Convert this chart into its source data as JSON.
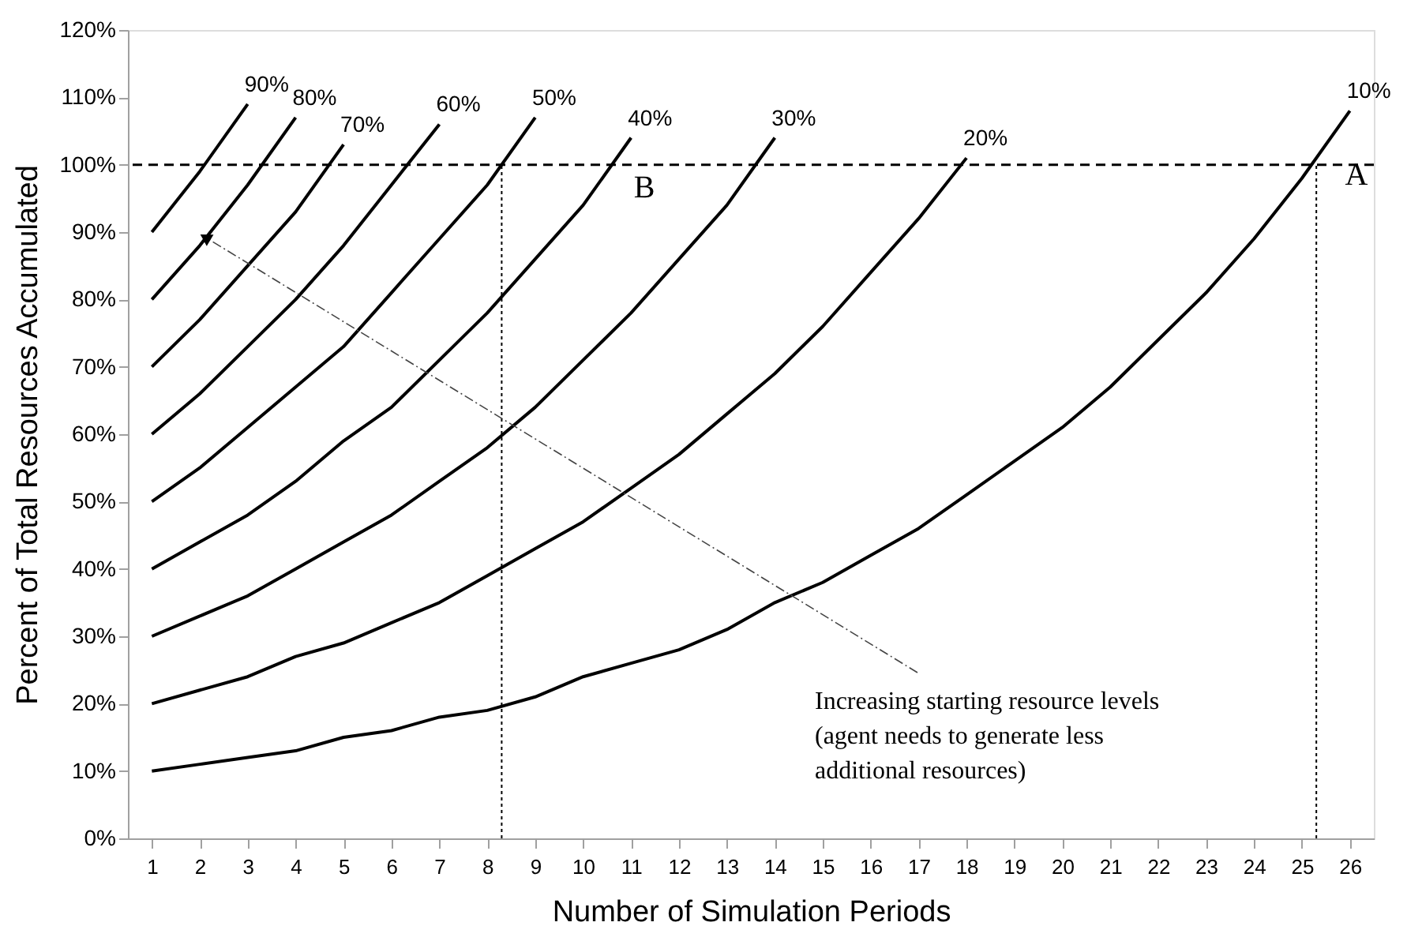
{
  "chart_data": {
    "type": "line",
    "xlabel": "Number of Simulation Periods",
    "ylabel": "Percent of Total Resources Accumulated",
    "x": [
      1,
      2,
      3,
      4,
      5,
      6,
      7,
      8,
      9,
      10,
      11,
      12,
      13,
      14,
      15,
      16,
      17,
      18,
      19,
      20,
      21,
      22,
      23,
      24,
      25,
      26
    ],
    "xlim": [
      0.5,
      26.5
    ],
    "xticks": [
      1,
      2,
      3,
      4,
      5,
      6,
      7,
      8,
      9,
      10,
      11,
      12,
      13,
      14,
      15,
      16,
      17,
      18,
      19,
      20,
      21,
      22,
      23,
      24,
      25,
      26
    ],
    "ylim": [
      0,
      120
    ],
    "yticks": [
      {
        "value": 0,
        "label": "0%"
      },
      {
        "value": 10,
        "label": "10%"
      },
      {
        "value": 20,
        "label": "20%"
      },
      {
        "value": 30,
        "label": "30%"
      },
      {
        "value": 40,
        "label": "40%"
      },
      {
        "value": 50,
        "label": "50%"
      },
      {
        "value": 60,
        "label": "60%"
      },
      {
        "value": 70,
        "label": "70%"
      },
      {
        "value": 80,
        "label": "80%"
      },
      {
        "value": 90,
        "label": "90%"
      },
      {
        "value": 100,
        "label": "100%"
      },
      {
        "value": 110,
        "label": "110%"
      },
      {
        "value": 120,
        "label": "120%"
      }
    ],
    "series": [
      {
        "name": "90%",
        "color": "#000000",
        "values": [
          90,
          99,
          109,
          null,
          null,
          null,
          null,
          null,
          null,
          null,
          null,
          null,
          null,
          null,
          null,
          null,
          null,
          null,
          null,
          null,
          null,
          null,
          null,
          null,
          null,
          null
        ]
      },
      {
        "name": "80%",
        "color": "#000000",
        "values": [
          80,
          88,
          97,
          107,
          null,
          null,
          null,
          null,
          null,
          null,
          null,
          null,
          null,
          null,
          null,
          null,
          null,
          null,
          null,
          null,
          null,
          null,
          null,
          null,
          null,
          null
        ]
      },
      {
        "name": "70%",
        "color": "#000000",
        "values": [
          70,
          77,
          85,
          93,
          103,
          null,
          null,
          null,
          null,
          null,
          null,
          null,
          null,
          null,
          null,
          null,
          null,
          null,
          null,
          null,
          null,
          null,
          null,
          null,
          null,
          null
        ]
      },
      {
        "name": "60%",
        "color": "#000000",
        "values": [
          60,
          66,
          73,
          80,
          88,
          97,
          106,
          null,
          null,
          null,
          null,
          null,
          null,
          null,
          null,
          null,
          null,
          null,
          null,
          null,
          null,
          null,
          null,
          null,
          null,
          null
        ]
      },
      {
        "name": "50%",
        "color": "#000000",
        "values": [
          50,
          55,
          61,
          67,
          73,
          81,
          89,
          97,
          107,
          null,
          null,
          null,
          null,
          null,
          null,
          null,
          null,
          null,
          null,
          null,
          null,
          null,
          null,
          null,
          null,
          null
        ]
      },
      {
        "name": "40%",
        "color": "#000000",
        "values": [
          40,
          44,
          48,
          53,
          59,
          64,
          71,
          78,
          86,
          94,
          104,
          null,
          null,
          null,
          null,
          null,
          null,
          null,
          null,
          null,
          null,
          null,
          null,
          null,
          null,
          null
        ]
      },
      {
        "name": "30%",
        "color": "#000000",
        "values": [
          30,
          33,
          36,
          40,
          44,
          48,
          53,
          58,
          64,
          71,
          78,
          86,
          94,
          104,
          null,
          null,
          null,
          null,
          null,
          null,
          null,
          null,
          null,
          null,
          null,
          null
        ]
      },
      {
        "name": "20%",
        "color": "#000000",
        "values": [
          20,
          22,
          24,
          27,
          29,
          32,
          35,
          39,
          43,
          47,
          52,
          57,
          63,
          69,
          76,
          84,
          92,
          101,
          null,
          null,
          null,
          null,
          null,
          null,
          null,
          null
        ]
      },
      {
        "name": "10%",
        "color": "#000000",
        "values": [
          10,
          11,
          12,
          13,
          15,
          16,
          18,
          19,
          21,
          24,
          26,
          28,
          31,
          35,
          38,
          42,
          46,
          51,
          56,
          61,
          67,
          74,
          81,
          89,
          98,
          108
        ]
      }
    ],
    "ref_lines": [
      {
        "axis": "y",
        "value": 100,
        "line_style": "dashed"
      },
      {
        "axis": "x",
        "value": 8.3,
        "line_style": "dotted"
      },
      {
        "axis": "x",
        "value": 25.3,
        "line_style": "dotted"
      }
    ],
    "annotations": [
      "A",
      "B",
      "Increasing starting resource levels\n(agent needs to generate less\nadditional resources)"
    ],
    "grid": false,
    "marker": "none",
    "line_style": "solid"
  }
}
